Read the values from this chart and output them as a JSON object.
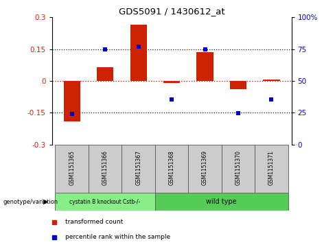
{
  "title": "GDS5091 / 1430612_at",
  "samples": [
    "GSM1151365",
    "GSM1151366",
    "GSM1151367",
    "GSM1151368",
    "GSM1151369",
    "GSM1151370",
    "GSM1151371"
  ],
  "bar_values": [
    -0.19,
    0.065,
    0.265,
    -0.01,
    0.135,
    -0.04,
    0.005
  ],
  "dot_values": [
    -0.155,
    0.148,
    0.162,
    -0.087,
    0.148,
    -0.152,
    -0.088
  ],
  "ylim": [
    -0.3,
    0.3
  ],
  "y2lim": [
    0,
    100
  ],
  "yticks": [
    -0.3,
    -0.15,
    0.0,
    0.15,
    0.3
  ],
  "y2ticks": [
    0,
    25,
    50,
    75,
    100
  ],
  "hlines_dotted": [
    0.15,
    -0.15
  ],
  "hline_zero_red": 0.0,
  "bar_color": "#cc2200",
  "dot_color": "#0000cc",
  "zero_line_color": "#cc2200",
  "hline_color": "#111111",
  "group1_label": "cystatin B knockout Cstb-/-",
  "group2_label": "wild type",
  "group1_count": 3,
  "group2_count": 4,
  "group1_color": "#88ee88",
  "group2_color": "#55cc55",
  "genotype_label": "genotype/variation",
  "legend_bar_label": "transformed count",
  "legend_dot_label": "percentile rank within the sample",
  "bar_width": 0.5,
  "sample_bg_color": "#cccccc",
  "fig_bg": "#ffffff"
}
